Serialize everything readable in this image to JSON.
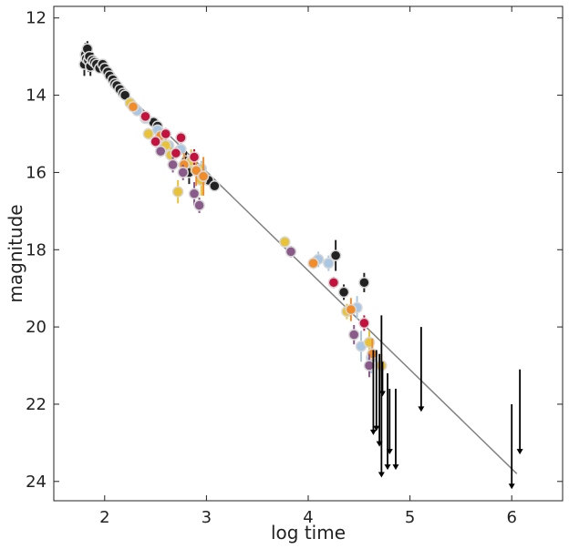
{
  "chart_data": {
    "type": "scatter",
    "xlabel": "log time",
    "ylabel": "magnitude",
    "xlim": [
      1.5,
      6.5
    ],
    "ylim": [
      24.5,
      11.7
    ],
    "y_inverted": true,
    "x_ticks": [
      2,
      3,
      4,
      5,
      6
    ],
    "x_tick_labels": [
      "2",
      "3",
      "4",
      "5",
      "6"
    ],
    "y_ticks": [
      12,
      14,
      16,
      18,
      20,
      22,
      24
    ],
    "y_tick_labels": [
      "12",
      "14",
      "16",
      "18",
      "20",
      "22",
      "24"
    ],
    "grid": false,
    "legend": "none",
    "colors": {
      "black": "#222222",
      "lightblue": "#a9c6e3",
      "gold": "#e8c33a",
      "orange": "#f08c2a",
      "crimson": "#c4123e",
      "purple": "#8a5a8a",
      "fit_line": "#808080"
    },
    "fit_line": {
      "x": [
        1.8,
        6.05
      ],
      "y": [
        12.9,
        23.8
      ]
    },
    "series": [
      {
        "color_key": "black",
        "points": [
          {
            "x": 1.8,
            "y": 13.2,
            "err": 0.3
          },
          {
            "x": 1.81,
            "y": 12.95,
            "err": 0.3
          },
          {
            "x": 1.82,
            "y": 13.05,
            "err": 0.25
          },
          {
            "x": 1.83,
            "y": 12.8,
            "err": 0.2
          },
          {
            "x": 1.84,
            "y": 13.1,
            "err": 0.3
          },
          {
            "x": 1.85,
            "y": 13.0,
            "err": 0.2
          },
          {
            "x": 1.86,
            "y": 13.25,
            "err": 0.25
          },
          {
            "x": 1.88,
            "y": 13.1,
            "err": 0.2
          },
          {
            "x": 1.9,
            "y": 13.15,
            "err": 0.15
          },
          {
            "x": 1.92,
            "y": 13.2,
            "err": 0.15
          },
          {
            "x": 1.95,
            "y": 13.3,
            "err": 0.1
          },
          {
            "x": 1.98,
            "y": 13.2,
            "err": 0.1
          },
          {
            "x": 2.0,
            "y": 13.3,
            "err": 0.1
          },
          {
            "x": 2.03,
            "y": 13.4,
            "err": 0.1
          },
          {
            "x": 2.05,
            "y": 13.5,
            "err": 0.1
          },
          {
            "x": 2.08,
            "y": 13.6,
            "err": 0.1
          },
          {
            "x": 2.1,
            "y": 13.7,
            "err": 0.1
          },
          {
            "x": 2.12,
            "y": 13.75,
            "err": 0.1
          },
          {
            "x": 2.15,
            "y": 13.85,
            "err": 0.1
          },
          {
            "x": 2.18,
            "y": 13.95,
            "err": 0.1
          },
          {
            "x": 2.2,
            "y": 14.0,
            "err": 0.1
          },
          {
            "x": 2.48,
            "y": 14.7,
            "err": 0.1
          },
          {
            "x": 2.52,
            "y": 14.8,
            "err": 0.1
          },
          {
            "x": 2.8,
            "y": 15.7,
            "err": 0.25
          },
          {
            "x": 2.83,
            "y": 16.0,
            "err": 0.3
          },
          {
            "x": 3.02,
            "y": 16.2,
            "err": 0.1
          },
          {
            "x": 3.08,
            "y": 16.35,
            "err": 0.1
          },
          {
            "x": 4.27,
            "y": 18.15,
            "err": 0.4
          },
          {
            "x": 4.35,
            "y": 19.1,
            "err": 0.2
          },
          {
            "x": 4.55,
            "y": 18.85,
            "err": 0.25
          }
        ]
      },
      {
        "color_key": "lightblue",
        "points": [
          {
            "x": 2.32,
            "y": 14.4,
            "err": 0.1
          },
          {
            "x": 2.4,
            "y": 14.6,
            "err": 0.1
          },
          {
            "x": 2.52,
            "y": 14.9,
            "err": 0.1
          },
          {
            "x": 2.63,
            "y": 15.3,
            "err": 0.15
          },
          {
            "x": 2.75,
            "y": 15.4,
            "err": 0.15
          },
          {
            "x": 2.95,
            "y": 15.9,
            "err": 0.2
          },
          {
            "x": 4.1,
            "y": 18.25,
            "err": 0.2
          },
          {
            "x": 4.2,
            "y": 18.35,
            "err": 0.2
          },
          {
            "x": 4.48,
            "y": 19.5,
            "err": 0.3
          },
          {
            "x": 4.52,
            "y": 20.5,
            "err": 0.4
          },
          {
            "x": 4.62,
            "y": 20.8,
            "err": 0.4
          }
        ]
      },
      {
        "color_key": "gold",
        "points": [
          {
            "x": 2.25,
            "y": 14.2,
            "err": 0.1
          },
          {
            "x": 2.43,
            "y": 15.0,
            "err": 0.15
          },
          {
            "x": 2.6,
            "y": 15.3,
            "err": 0.2
          },
          {
            "x": 2.65,
            "y": 15.55,
            "err": 0.2
          },
          {
            "x": 2.72,
            "y": 16.5,
            "err": 0.3
          },
          {
            "x": 2.85,
            "y": 15.7,
            "err": 0.3
          },
          {
            "x": 2.95,
            "y": 16.2,
            "err": 0.4
          },
          {
            "x": 3.77,
            "y": 17.8,
            "err": 0.15
          },
          {
            "x": 4.38,
            "y": 19.6,
            "err": 0.2
          },
          {
            "x": 4.6,
            "y": 20.4,
            "err": 0.3
          },
          {
            "x": 4.72,
            "y": 21.0,
            "err": 0.3
          }
        ]
      },
      {
        "color_key": "orange",
        "points": [
          {
            "x": 2.28,
            "y": 14.3,
            "err": 0.1
          },
          {
            "x": 2.55,
            "y": 15.05,
            "err": 0.15
          },
          {
            "x": 2.78,
            "y": 15.8,
            "err": 0.3
          },
          {
            "x": 2.9,
            "y": 15.95,
            "err": 0.4
          },
          {
            "x": 2.97,
            "y": 16.1,
            "err": 0.5
          },
          {
            "x": 4.05,
            "y": 18.35,
            "err": 0.15
          },
          {
            "x": 4.42,
            "y": 19.55,
            "err": 0.3
          },
          {
            "x": 4.63,
            "y": 20.7,
            "err": 0.4
          }
        ]
      },
      {
        "color_key": "crimson",
        "points": [
          {
            "x": 2.4,
            "y": 14.55,
            "err": 0.1
          },
          {
            "x": 2.5,
            "y": 15.2,
            "err": 0.15
          },
          {
            "x": 2.6,
            "y": 15.0,
            "err": 0.15
          },
          {
            "x": 2.7,
            "y": 15.5,
            "err": 0.15
          },
          {
            "x": 2.75,
            "y": 15.1,
            "err": 0.15
          },
          {
            "x": 2.88,
            "y": 15.6,
            "err": 0.2
          },
          {
            "x": 4.25,
            "y": 18.85,
            "err": 0.15
          },
          {
            "x": 4.55,
            "y": 19.9,
            "err": 0.2
          }
        ]
      },
      {
        "color_key": "purple",
        "points": [
          {
            "x": 2.55,
            "y": 15.45,
            "err": 0.15
          },
          {
            "x": 2.67,
            "y": 15.8,
            "err": 0.2
          },
          {
            "x": 2.77,
            "y": 16.0,
            "err": 0.2
          },
          {
            "x": 2.88,
            "y": 16.55,
            "err": 0.3
          },
          {
            "x": 2.93,
            "y": 16.85,
            "err": 0.2
          },
          {
            "x": 3.83,
            "y": 18.05,
            "err": 0.15
          },
          {
            "x": 4.45,
            "y": 20.2,
            "err": 0.25
          },
          {
            "x": 4.6,
            "y": 21.0,
            "err": 0.3
          }
        ]
      }
    ],
    "upper_limits": [
      {
        "x": 4.64,
        "y_from": 20.6,
        "y_to": 22.8
      },
      {
        "x": 4.67,
        "y_from": 20.6,
        "y_to": 22.7
      },
      {
        "x": 4.7,
        "y_from": 20.7,
        "y_to": 23.1
      },
      {
        "x": 4.72,
        "y_from": 19.7,
        "y_to": 23.9
      },
      {
        "x": 4.73,
        "y_from": 20.9,
        "y_to": 21.8
      },
      {
        "x": 4.78,
        "y_from": 21.2,
        "y_to": 23.7
      },
      {
        "x": 4.8,
        "y_from": 21.6,
        "y_to": 23.3
      },
      {
        "x": 4.86,
        "y_from": 21.6,
        "y_to": 23.7
      },
      {
        "x": 5.11,
        "y_from": 20.0,
        "y_to": 22.2
      },
      {
        "x": 6.0,
        "y_from": 22.0,
        "y_to": 24.2
      },
      {
        "x": 6.08,
        "y_from": 21.1,
        "y_to": 23.3
      }
    ]
  }
}
